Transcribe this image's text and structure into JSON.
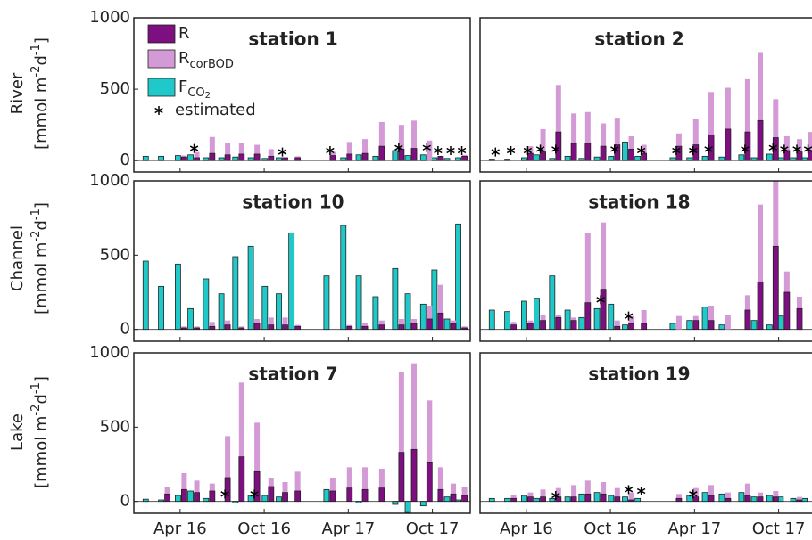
{
  "chart_data": [
    {
      "type": "bar",
      "title": "station 1",
      "ylabel": "River",
      "yunit": [
        "[mmol m",
        "-2",
        "d",
        "-1",
        "]"
      ],
      "ylim": [
        -80,
        1000
      ],
      "yticks": [
        0,
        500,
        1000
      ],
      "xlim": [
        -0.3,
        23.7
      ],
      "legend": "upper left",
      "x": [
        0.8,
        1.9,
        3.1,
        4.0,
        5.1,
        6.2,
        7.2,
        8.3,
        9.3,
        10.3,
        11.2,
        13.7,
        14.9,
        16.0,
        17.2,
        18.6,
        19.5,
        20.6,
        21.4,
        22.3,
        23.1
      ],
      "series": [
        {
          "name": "F",
          "name_sub": "CO",
          "name_subsub": "2",
          "color": "#1fc9c9",
          "values": [
            30,
            30,
            35,
            40,
            20,
            20,
            25,
            20,
            15,
            20,
            null,
            null,
            20,
            40,
            30,
            70,
            35,
            40,
            20,
            15,
            20
          ]
        },
        {
          "name": "R",
          "name_sub": "corBOD",
          "color": "#d49ad6",
          "values": [
            null,
            null,
            35,
            60,
            165,
            120,
            120,
            110,
            80,
            20,
            30,
            60,
            130,
            150,
            270,
            250,
            280,
            140,
            null,
            null,
            40
          ]
        },
        {
          "name": "R",
          "color": "#7d0f80",
          "values": [
            null,
            null,
            25,
            20,
            50,
            40,
            45,
            45,
            30,
            20,
            20,
            35,
            45,
            50,
            100,
            80,
            85,
            null,
            30,
            null,
            30
          ]
        },
        {
          "name": "estimated",
          "color": "#000000",
          "values": [
            null,
            null,
            null,
            85,
            null,
            null,
            null,
            null,
            null,
            60,
            null,
            70,
            null,
            null,
            null,
            90,
            null,
            90,
            70,
            70,
            70
          ]
        }
      ]
    },
    {
      "type": "bar",
      "title": "station 2",
      "ylim": [
        -80,
        1000
      ],
      "xlim": [
        -0.3,
        23.7
      ],
      "x": [
        0.8,
        1.9,
        3.1,
        4.0,
        5.1,
        6.2,
        7.2,
        8.3,
        9.3,
        10.3,
        11.2,
        13.7,
        14.9,
        16.0,
        17.2,
        18.6,
        19.5,
        20.6,
        21.4,
        22.3,
        23.1
      ],
      "series": [
        {
          "color": "#1fc9c9",
          "values": [
            10,
            10,
            20,
            40,
            15,
            30,
            15,
            25,
            30,
            130,
            30,
            20,
            20,
            30,
            25,
            40,
            20,
            45,
            20,
            20,
            20
          ]
        },
        {
          "color": "#d49ad6",
          "values": [
            null,
            null,
            100,
            220,
            530,
            330,
            340,
            260,
            300,
            170,
            110,
            190,
            290,
            480,
            510,
            570,
            760,
            430,
            170,
            150,
            200
          ]
        },
        {
          "color": "#7d0f80",
          "values": [
            null,
            null,
            50,
            60,
            200,
            120,
            120,
            100,
            110,
            80,
            50,
            100,
            110,
            180,
            220,
            200,
            280,
            160,
            70,
            60,
            70
          ]
        },
        {
          "color": "#000000",
          "values": [
            60,
            70,
            70,
            80,
            80,
            null,
            null,
            null,
            80,
            null,
            70,
            70,
            70,
            80,
            null,
            80,
            null,
            90,
            80,
            80,
            80
          ]
        }
      ]
    },
    {
      "type": "bar",
      "title": "station 10",
      "ylabel": "Channel",
      "yunit": [
        "[mmol m",
        "-2",
        "d",
        "-1",
        "]"
      ],
      "ylim": [
        -80,
        1000
      ],
      "yticks": [
        0,
        500,
        1000
      ],
      "xlim": [
        -0.3,
        23.7
      ],
      "x": [
        0.8,
        1.9,
        3.1,
        4.0,
        5.1,
        6.2,
        7.2,
        8.3,
        9.3,
        10.3,
        11.2,
        13.7,
        14.9,
        16.0,
        17.2,
        18.6,
        19.5,
        20.6,
        21.4,
        22.3,
        23.1
      ],
      "series": [
        {
          "color": "#1fc9c9",
          "values": [
            460,
            290,
            440,
            140,
            340,
            240,
            490,
            560,
            290,
            240,
            650,
            360,
            700,
            360,
            220,
            410,
            240,
            170,
            400,
            70,
            710
          ]
        },
        {
          "color": "#d49ad6",
          "values": [
            null,
            null,
            20,
            20,
            50,
            60,
            20,
            70,
            80,
            80,
            30,
            null,
            30,
            40,
            60,
            70,
            70,
            160,
            300,
            60,
            20
          ]
        },
        {
          "color": "#7d0f80",
          "values": [
            null,
            null,
            10,
            10,
            20,
            30,
            10,
            40,
            30,
            30,
            20,
            null,
            20,
            20,
            30,
            30,
            40,
            70,
            110,
            40,
            10
          ]
        },
        {
          "color": "#000000",
          "values": [
            null,
            null,
            null,
            null,
            null,
            null,
            null,
            null,
            null,
            null,
            null,
            null,
            null,
            null,
            null,
            null,
            null,
            null,
            null,
            null,
            null
          ]
        }
      ]
    },
    {
      "type": "bar",
      "title": "station 18",
      "ylim": [
        -80,
        1000
      ],
      "xlim": [
        -0.3,
        23.7
      ],
      "x": [
        0.8,
        1.9,
        3.1,
        4.0,
        5.1,
        6.2,
        7.2,
        8.3,
        9.3,
        10.3,
        11.2,
        13.7,
        14.9,
        16.0,
        17.2,
        18.6,
        19.5,
        20.6,
        21.4,
        22.3,
        23.1
      ],
      "series": [
        {
          "color": "#1fc9c9",
          "values": [
            130,
            120,
            190,
            210,
            360,
            130,
            80,
            140,
            170,
            30,
            null,
            40,
            60,
            150,
            30,
            null,
            60,
            30,
            90,
            null,
            null
          ]
        },
        {
          "color": "#d49ad6",
          "values": [
            null,
            50,
            60,
            100,
            100,
            80,
            650,
            720,
            60,
            90,
            130,
            90,
            90,
            160,
            100,
            230,
            840,
            1000,
            390,
            220,
            null
          ]
        },
        {
          "color": "#7d0f80",
          "values": [
            null,
            30,
            40,
            60,
            80,
            60,
            180,
            270,
            20,
            40,
            40,
            null,
            60,
            60,
            null,
            130,
            320,
            560,
            250,
            140,
            null
          ]
        },
        {
          "color": "#000000",
          "values": [
            null,
            null,
            null,
            null,
            null,
            null,
            null,
            200,
            null,
            90,
            null,
            null,
            null,
            null,
            null,
            null,
            null,
            null,
            null,
            null,
            null
          ]
        }
      ]
    },
    {
      "type": "bar",
      "title": "station 7",
      "ylabel": "Lake",
      "yunit": [
        "[mmol m",
        "-2",
        "d",
        "-1",
        "]"
      ],
      "ylim": [
        -80,
        1000
      ],
      "yticks": [
        0,
        500,
        1000
      ],
      "xlim": [
        -0.3,
        23.7
      ],
      "xticks": [
        {
          "value": 3,
          "label": "Apr 16"
        },
        {
          "value": 9,
          "label": "Oct 16"
        },
        {
          "value": 15,
          "label": "Apr 17"
        },
        {
          "value": 21,
          "label": "Oct 17"
        }
      ],
      "x": [
        0.8,
        1.9,
        3.1,
        4.0,
        5.1,
        6.2,
        7.2,
        8.3,
        9.3,
        10.3,
        11.2,
        13.7,
        14.9,
        16.0,
        17.2,
        18.6,
        19.5,
        20.6,
        21.4,
        22.3,
        23.1
      ],
      "series": [
        {
          "color": "#1fc9c9",
          "values": [
            15,
            10,
            40,
            70,
            20,
            null,
            -10,
            40,
            40,
            30,
            null,
            80,
            null,
            -10,
            null,
            -20,
            -75,
            -30,
            null,
            30,
            10
          ]
        },
        {
          "color": "#d49ad6",
          "values": [
            null,
            100,
            190,
            140,
            120,
            440,
            800,
            530,
            160,
            130,
            200,
            160,
            230,
            230,
            220,
            870,
            930,
            680,
            230,
            120,
            100
          ]
        },
        {
          "color": "#7d0f80",
          "values": [
            null,
            50,
            80,
            60,
            70,
            160,
            300,
            200,
            100,
            60,
            70,
            70,
            90,
            80,
            90,
            330,
            350,
            260,
            80,
            50,
            40
          ]
        },
        {
          "color": "#000000",
          "values": [
            null,
            null,
            null,
            null,
            null,
            50,
            null,
            50,
            null,
            null,
            null,
            null,
            null,
            null,
            null,
            null,
            null,
            null,
            null,
            null,
            null
          ]
        }
      ]
    },
    {
      "type": "bar",
      "title": "station 19",
      "ylim": [
        -80,
        1000
      ],
      "xlim": [
        -0.3,
        23.7
      ],
      "xticks": [
        {
          "value": 3,
          "label": "Apr 16"
        },
        {
          "value": 9,
          "label": "Oct 16"
        },
        {
          "value": 15,
          "label": "Apr 17"
        },
        {
          "value": 21,
          "label": "Oct 17"
        }
      ],
      "x": [
        0.8,
        1.9,
        3.1,
        4.0,
        5.1,
        6.2,
        7.2,
        8.3,
        9.3,
        10.3,
        11.2,
        13.7,
        14.9,
        16.0,
        17.2,
        18.6,
        19.5,
        20.6,
        21.4,
        22.3,
        23.1
      ],
      "series": [
        {
          "color": "#1fc9c9",
          "values": [
            20,
            20,
            40,
            20,
            20,
            30,
            50,
            60,
            40,
            30,
            20,
            null,
            40,
            60,
            50,
            60,
            30,
            40,
            30,
            20,
            20
          ]
        },
        {
          "color": "#d49ad6",
          "values": [
            null,
            40,
            60,
            80,
            90,
            110,
            140,
            130,
            90,
            60,
            null,
            50,
            90,
            110,
            60,
            120,
            60,
            70,
            null,
            30,
            null
          ]
        },
        {
          "color": "#7d0f80",
          "values": [
            null,
            20,
            30,
            30,
            30,
            30,
            50,
            50,
            30,
            10,
            null,
            20,
            30,
            40,
            20,
            40,
            30,
            30,
            null,
            10,
            null
          ]
        },
        {
          "color": "#000000",
          "values": [
            null,
            null,
            null,
            null,
            40,
            null,
            null,
            null,
            null,
            80,
            70,
            null,
            50,
            null,
            null,
            null,
            null,
            null,
            null,
            null,
            null
          ]
        }
      ]
    }
  ]
}
